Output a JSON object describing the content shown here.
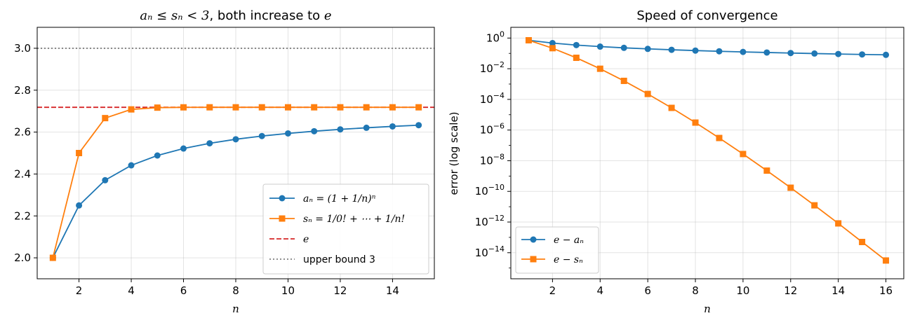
{
  "chart_data": [
    {
      "type": "line",
      "title_math": "aₙ ≤ sₙ < 3",
      "title_text": ", both increase to ",
      "title_math2": "e",
      "xlabel": "n",
      "ylabel": "",
      "xlim": [
        0.4,
        15.6
      ],
      "ylim": [
        1.9,
        3.1
      ],
      "xticks": [
        2,
        4,
        6,
        8,
        10,
        12,
        14
      ],
      "yticks": [
        2.0,
        2.2,
        2.4,
        2.6,
        2.8,
        3.0
      ],
      "grid": true,
      "legend_position": "bottom-right",
      "x": [
        1,
        2,
        3,
        4,
        5,
        6,
        7,
        8,
        9,
        10,
        11,
        12,
        13,
        14,
        15
      ],
      "series": [
        {
          "name": "aₙ = (1 + 1/n)ⁿ",
          "color": "#1f77b4",
          "marker": "circle",
          "values": [
            2.0,
            2.25,
            2.3704,
            2.4414,
            2.4883,
            2.5216,
            2.5465,
            2.5658,
            2.5812,
            2.5937,
            2.6042,
            2.613,
            2.6206,
            2.6272,
            2.6329
          ]
        },
        {
          "name": "sₙ = 1/0! + ⋯ + 1/n!",
          "color": "#ff7f0e",
          "marker": "square",
          "values": [
            2.0,
            2.5,
            2.6667,
            2.7083,
            2.7167,
            2.7181,
            2.7183,
            2.7183,
            2.7183,
            2.7183,
            2.7183,
            2.7183,
            2.7183,
            2.7183,
            2.7183
          ]
        }
      ],
      "hlines": [
        {
          "name": "e",
          "value": 2.71828,
          "color": "#d62728",
          "style": "dashed"
        },
        {
          "name": "upper bound 3",
          "value": 3.0,
          "color": "#808080",
          "style": "dotted"
        }
      ]
    },
    {
      "type": "line",
      "title": "Speed of convergence",
      "xlabel": "n",
      "ylabel": "error (log scale)",
      "yscale": "log",
      "xlim": [
        0.25,
        16.75
      ],
      "ylim_log10": [
        -15.7,
        0.7
      ],
      "xticks": [
        2,
        4,
        6,
        8,
        10,
        12,
        14,
        16
      ],
      "yticks_exp": [
        0,
        -2,
        -4,
        -6,
        -8,
        -10,
        -12,
        -14
      ],
      "grid": true,
      "legend_position": "bottom-left",
      "x": [
        1,
        2,
        3,
        4,
        5,
        6,
        7,
        8,
        9,
        10,
        11,
        12,
        13,
        14,
        15,
        16
      ],
      "series": [
        {
          "name": "e − aₙ",
          "color": "#1f77b4",
          "marker": "circle",
          "values": [
            0.7183,
            0.4683,
            0.3479,
            0.2769,
            0.23,
            0.1967,
            0.1718,
            0.1525,
            0.1371,
            0.1245,
            0.1141,
            0.1053,
            0.0977,
            0.0911,
            0.0854,
            0.0804
          ]
        },
        {
          "name": "e − sₙ",
          "color": "#ff7f0e",
          "marker": "square",
          "values": [
            0.7183,
            0.2183,
            0.0516,
            0.00995,
            0.00161,
            0.000226,
            2.79e-05,
            3.06e-06,
            3.03e-07,
            2.73e-08,
            2.26e-09,
            1.73e-10,
            1.23e-11,
            8.15e-13,
            5e-14,
            3.1e-15
          ]
        }
      ]
    }
  ]
}
